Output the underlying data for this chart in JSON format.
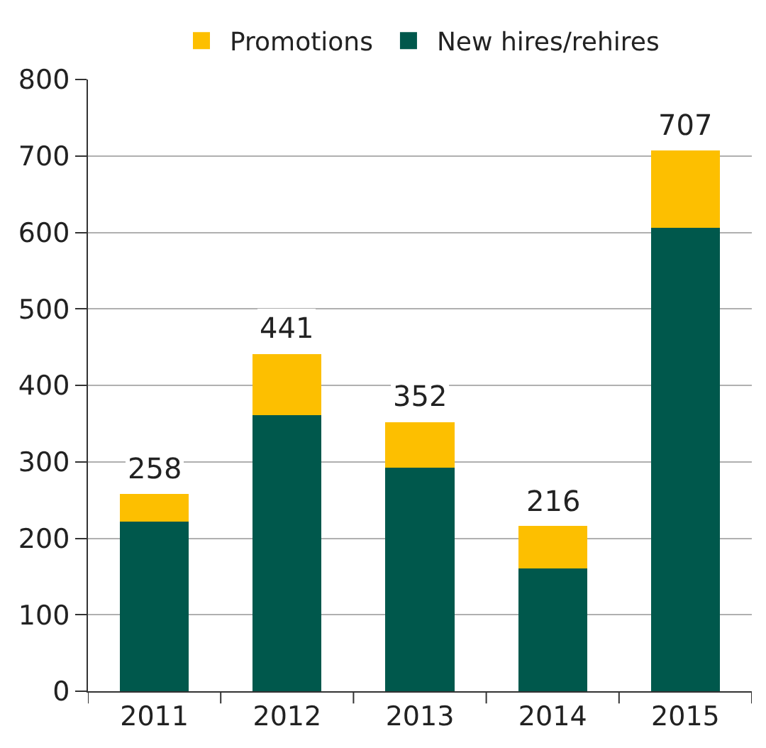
{
  "chart_data": {
    "type": "bar",
    "stacked": true,
    "categories": [
      "2011",
      "2012",
      "2013",
      "2014",
      "2015"
    ],
    "series": [
      {
        "name": "New hires/rehires",
        "color": "#00584c",
        "values": [
          222,
          361,
          292,
          161,
          606
        ]
      },
      {
        "name": "Promotions",
        "color": "#fdbf00",
        "values": [
          36,
          80,
          60,
          55,
          101
        ]
      }
    ],
    "totals": [
      "258",
      "441",
      "352",
      "216",
      "707"
    ],
    "ylim": [
      0,
      800
    ],
    "yticks": [
      0,
      100,
      200,
      300,
      400,
      500,
      600,
      700,
      800
    ],
    "grid": "y",
    "legend": "top"
  }
}
